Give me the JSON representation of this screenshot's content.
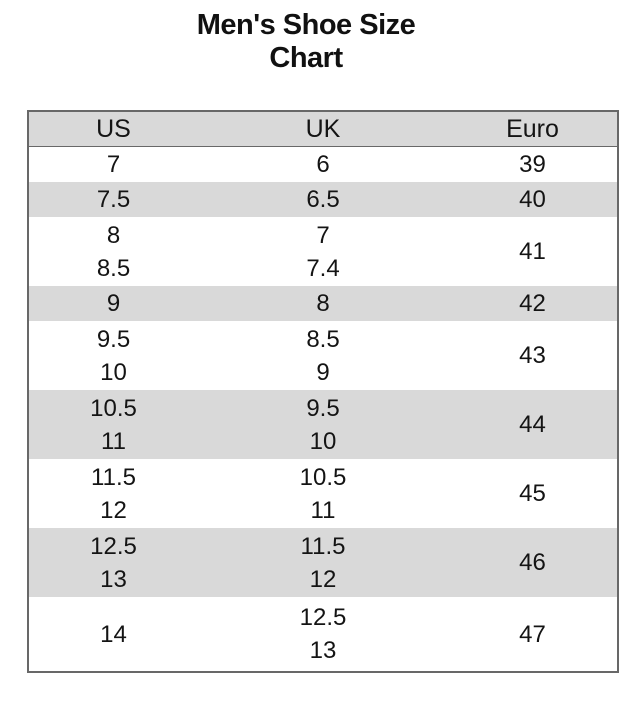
{
  "title": {
    "line1": "Men's Shoe Size",
    "line2": "Chart"
  },
  "chart_data": {
    "type": "table",
    "title": "Men's Shoe Size Chart",
    "columns": [
      "US",
      "UK",
      "Euro"
    ],
    "row_groups": [
      {
        "us": [
          "7"
        ],
        "uk": [
          "6"
        ],
        "euro": "39",
        "shaded": false
      },
      {
        "us": [
          "7.5"
        ],
        "uk": [
          "6.5"
        ],
        "euro": "40",
        "shaded": true
      },
      {
        "us": [
          "8",
          "8.5"
        ],
        "uk": [
          "7",
          "7.4"
        ],
        "euro": "41",
        "shaded": false
      },
      {
        "us": [
          "9"
        ],
        "uk": [
          "8"
        ],
        "euro": "42",
        "shaded": true
      },
      {
        "us": [
          "9.5",
          "10"
        ],
        "uk": [
          "8.5",
          "9"
        ],
        "euro": "43",
        "shaded": false
      },
      {
        "us": [
          "10.5",
          "11"
        ],
        "uk": [
          "9.5",
          "10"
        ],
        "euro": "44",
        "shaded": true
      },
      {
        "us": [
          "11.5",
          "12"
        ],
        "uk": [
          "10.5",
          "11"
        ],
        "euro": "45",
        "shaded": false
      },
      {
        "us": [
          "12.5",
          "13"
        ],
        "uk": [
          "11.5",
          "12"
        ],
        "euro": "46",
        "shaded": true
      },
      {
        "us": [
          "14"
        ],
        "uk": [
          "12.5",
          "13"
        ],
        "euro": "47",
        "shaded": false
      }
    ]
  },
  "colors": {
    "band_gray": "#d9d9d9",
    "border_gray": "#686868",
    "text": "#141414",
    "background": "#ffffff"
  }
}
